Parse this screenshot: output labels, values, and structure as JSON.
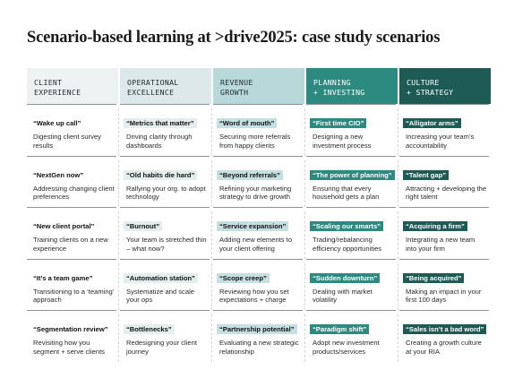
{
  "title": "Scenario-based learning at >drive2025: case study scenarios",
  "columns": [
    {
      "header_lines": [
        "CLIENT",
        "EXPERIENCE"
      ],
      "header_bg": "#eef1f2",
      "header_fg": "#1f2a30",
      "tag_bg": "transparent",
      "tag_fg": "#111111",
      "rows": [
        {
          "tag": "“Wake up call”",
          "desc": "Digesting client survey results"
        },
        {
          "tag": "“NextGen now”",
          "desc": "Addressing changing client preferences"
        },
        {
          "tag": "“New client portal”",
          "desc": "Training clients on a new experience"
        },
        {
          "tag": "“It’s a team game”",
          "desc": "Transitioning to a ‘teaming’ approach"
        },
        {
          "tag": "“Segmentation review”",
          "desc": "Revisiting how you segment + serve clients"
        }
      ]
    },
    {
      "header_lines": [
        "OPERATIONAL",
        "EXCELLENCE"
      ],
      "header_bg": "#dde8ea",
      "header_fg": "#1f2a30",
      "tag_bg": "#e4eeef",
      "tag_fg": "#111111",
      "rows": [
        {
          "tag": "“Metrics that matter”",
          "desc": "Driving clarity through dashboards"
        },
        {
          "tag": "“Old habits die hard”",
          "desc": "Rallying your org. to adopt technology"
        },
        {
          "tag": "“Burnout”",
          "desc": "Your team is stretched thin – what now?"
        },
        {
          "tag": "“Automation station”",
          "desc": "Systematize and scale your ops"
        },
        {
          "tag": "“Bottlenecks”",
          "desc": "Redesigning your client journey"
        }
      ]
    },
    {
      "header_lines": [
        "REVENUE",
        "GROWTH"
      ],
      "header_bg": "#b8d8da",
      "header_fg": "#1f2a30",
      "tag_bg": "#c6e0e2",
      "tag_fg": "#111111",
      "rows": [
        {
          "tag": "“Word of mouth”",
          "desc": "Securing more referrals from happy clients"
        },
        {
          "tag": "“Beyond referrals”",
          "desc": "Refining your marketing strategy to drive growth"
        },
        {
          "tag": "“Service expansion”",
          "desc": "Adding new elements to your client offering"
        },
        {
          "tag": "“Scope creep”",
          "desc": "Reviewing how you set expectations + charge"
        },
        {
          "tag": "“Partnership potential”",
          "desc": "Evaluating a new strategic relationship"
        }
      ]
    },
    {
      "header_lines": [
        "PLANNING",
        "+ INVESTING"
      ],
      "header_bg": "#2d8a80",
      "header_fg": "#ffffff",
      "tag_bg": "#2d8a80",
      "tag_fg": "#ffffff",
      "rows": [
        {
          "tag": "“First time CIO”",
          "desc": "Designing a new investment process"
        },
        {
          "tag": "“The power of planning”",
          "desc": "Ensuring that every household gets a plan"
        },
        {
          "tag": "“Scaling our smarts”",
          "desc": "Trading/rebalancing efficiency opportunities"
        },
        {
          "tag": "“Sudden downturn”",
          "desc": "Dealing with market volatility"
        },
        {
          "tag": "“Paradigm shift”",
          "desc": "Adopt new investment products/services"
        }
      ]
    },
    {
      "header_lines": [
        "CULTURE",
        "+ STRATEGY"
      ],
      "header_bg": "#1e5b55",
      "header_fg": "#ffffff",
      "tag_bg": "#1e5b55",
      "tag_fg": "#ffffff",
      "rows": [
        {
          "tag": "“Alligator arms”",
          "desc": "Increasing your team’s accountability"
        },
        {
          "tag": "“Talent gap”",
          "desc": "Attracting + developing the right talent"
        },
        {
          "tag": "“Acquiring a firm”",
          "desc": "Integrating a new team into your firm"
        },
        {
          "tag": "“Being acquired”",
          "desc": "Making an impact in your first 100 days"
        },
        {
          "tag": "“Sales isn’t a bad word”",
          "desc": "Creating a growth culture at your RIA"
        }
      ]
    }
  ]
}
